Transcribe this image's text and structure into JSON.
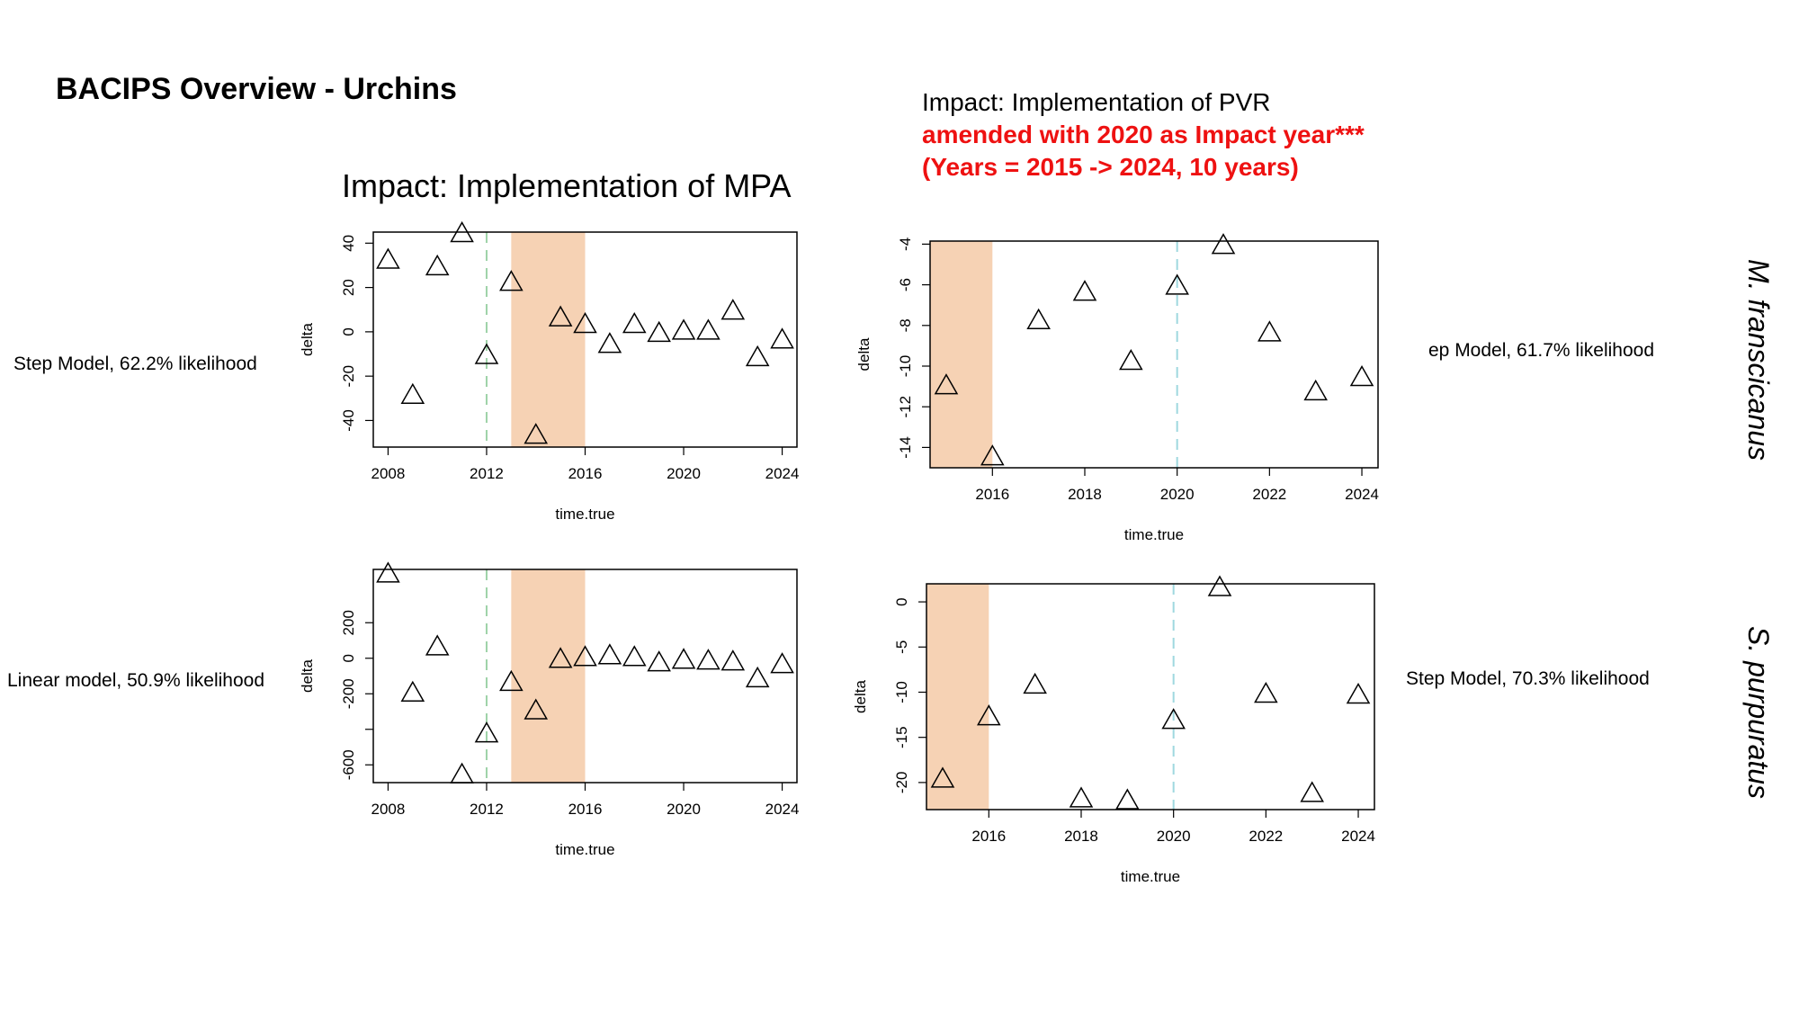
{
  "slide": {
    "title": "BACIPS Overview - Urchins",
    "mpa_title": "Impact: Implementation of MPA",
    "pvr_title_line1": "Impact: Implementation of PVR",
    "pvr_title_line2": "amended with 2020 as Impact year***",
    "pvr_title_line3": "(Years = 2015 -> 2024, 10 years)",
    "species_top": "M. franscicanus",
    "species_bottom": "S. purpuratus",
    "label_top_left": "Step Model, 62.2% likelihood",
    "label_top_right": "ep Model, 61.7% likelihood",
    "label_bottom_left": "Linear model, 50.9% likelihood",
    "label_bottom_right": "Step Model, 70.3% likelihood"
  },
  "colors": {
    "shade": "#f6d2b4",
    "mpa_line": "#9ed2a8",
    "pvr_line": "#9fd8df",
    "title_red": "#ee1111"
  },
  "chart_data": [
    {
      "id": "top-left",
      "type": "scatter",
      "marker": "open-triangle",
      "xlabel": "time.true",
      "ylabel": "delta",
      "xlim": [
        2007.4,
        2024.6
      ],
      "ylim": [
        -52,
        45
      ],
      "xticks": [
        2008,
        2012,
        2016,
        2020,
        2024
      ],
      "yticks": [
        -40,
        -20,
        0,
        20,
        40
      ],
      "impact_line_x": 2012,
      "shaded_span": [
        2013,
        2016
      ],
      "x": [
        2008,
        2009,
        2010,
        2011,
        2012,
        2013,
        2014,
        2015,
        2016,
        2017,
        2018,
        2019,
        2020,
        2021,
        2022,
        2023,
        2024
      ],
      "y": [
        32,
        -29,
        29,
        44,
        -11,
        22,
        -47,
        6,
        3,
        -6,
        3,
        -1,
        0,
        0,
        9,
        -12,
        -4
      ]
    },
    {
      "id": "top-right",
      "type": "scatter",
      "marker": "open-triangle",
      "xlabel": "time.true",
      "ylabel": "delta",
      "xlim": [
        2014.65,
        2024.35
      ],
      "ylim": [
        -15,
        -3.85
      ],
      "xticks": [
        2016,
        2018,
        2020,
        2022,
        2024
      ],
      "yticks": [
        -14,
        -12,
        -10,
        -8,
        -6,
        -4
      ],
      "impact_line_x": 2020,
      "shaded_span": [
        2014.65,
        2016
      ],
      "x": [
        2015,
        2016,
        2017,
        2018,
        2019,
        2020,
        2021,
        2022,
        2023,
        2024
      ],
      "y": [
        -11,
        -14.5,
        -7.8,
        -6.4,
        -9.8,
        -6.1,
        -4.1,
        -8.4,
        -11.3,
        -10.6
      ]
    },
    {
      "id": "bottom-left",
      "type": "scatter",
      "marker": "open-triangle",
      "xlabel": "time.true",
      "ylabel": "delta",
      "xlim": [
        2007.4,
        2024.6
      ],
      "ylim": [
        -700,
        500
      ],
      "xticks": [
        2008,
        2012,
        2016,
        2020,
        2024
      ],
      "yticks": [
        -600,
        -400,
        -200,
        0,
        200
      ],
      "ytick_labels": [
        "-600",
        "",
        "-200",
        "0",
        "200"
      ],
      "impact_line_x": 2012,
      "shaded_span": [
        2013,
        2016
      ],
      "x": [
        2008,
        2009,
        2010,
        2011,
        2012,
        2013,
        2014,
        2015,
        2016,
        2017,
        2018,
        2019,
        2020,
        2021,
        2022,
        2023,
        2024
      ],
      "y": [
        470,
        -200,
        60,
        -660,
        -430,
        -140,
        -300,
        -10,
        0,
        10,
        0,
        -30,
        -15,
        -20,
        -25,
        -120,
        -40
      ]
    },
    {
      "id": "bottom-right",
      "type": "scatter",
      "marker": "open-triangle",
      "xlabel": "time.true",
      "ylabel": "delta",
      "xlim": [
        2014.65,
        2024.35
      ],
      "ylim": [
        -23,
        2
      ],
      "xticks": [
        2016,
        2018,
        2020,
        2022,
        2024
      ],
      "yticks": [
        -20,
        -15,
        -10,
        -5,
        0
      ],
      "impact_line_x": 2020,
      "shaded_span": [
        2014.65,
        2016
      ],
      "x": [
        2015,
        2016,
        2017,
        2018,
        2019,
        2020,
        2021,
        2022,
        2023,
        2024
      ],
      "y": [
        -19.7,
        -12.8,
        -9.3,
        -21.9,
        -22.1,
        -13.2,
        1.5,
        -10.3,
        -21.3,
        -10.4
      ]
    }
  ]
}
